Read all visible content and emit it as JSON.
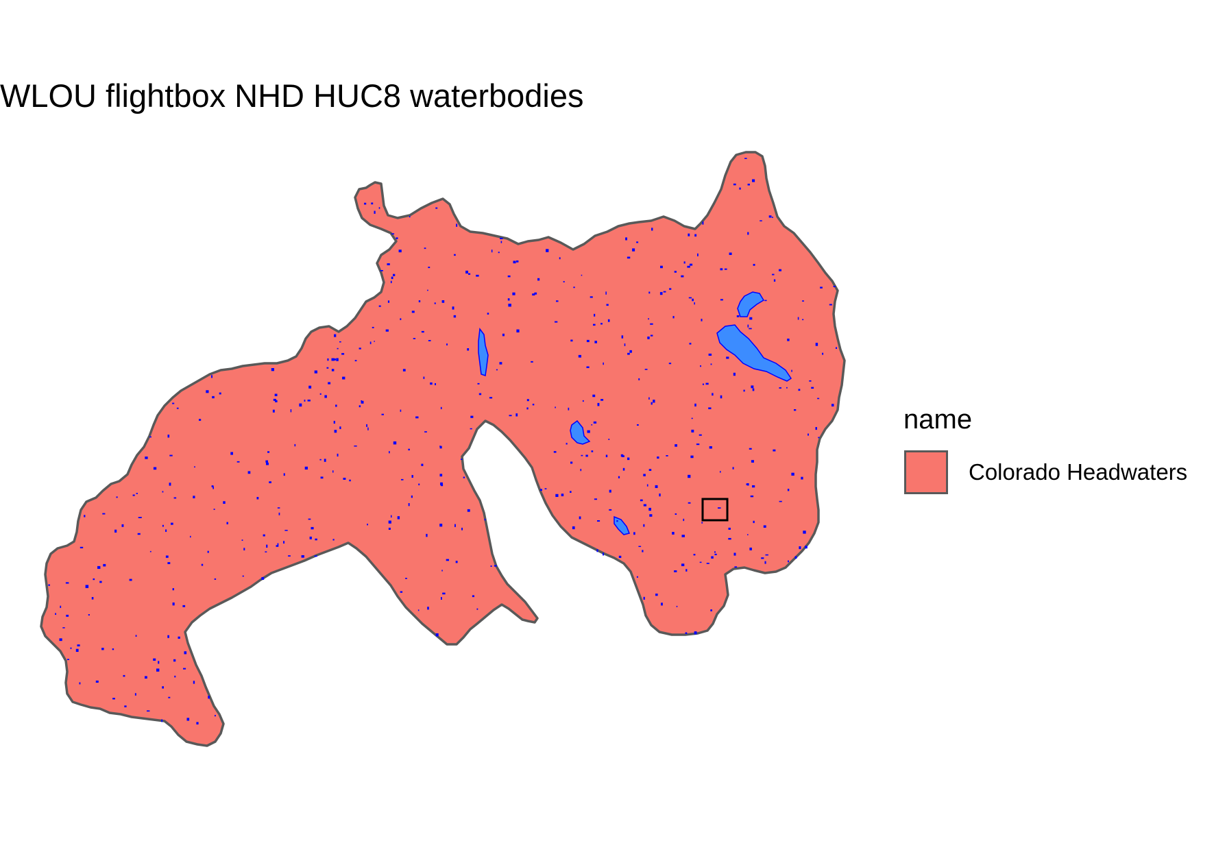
{
  "title": "WLOU flightbox NHD HUC8 waterbodies",
  "legend": {
    "title": "name",
    "entries": [
      {
        "label": "Colorado Headwaters",
        "fill": "#F8766D",
        "stroke": "#595959"
      }
    ]
  },
  "colors": {
    "huc_fill": "#F8766D",
    "huc_stroke": "#595959",
    "waterbody_fill": "#3C8CFF",
    "waterbody_stroke": "#0000FF",
    "flightbox_stroke": "#000000"
  },
  "map_features": [
    "huc8-polygon",
    "waterbodies",
    "flightbox"
  ]
}
